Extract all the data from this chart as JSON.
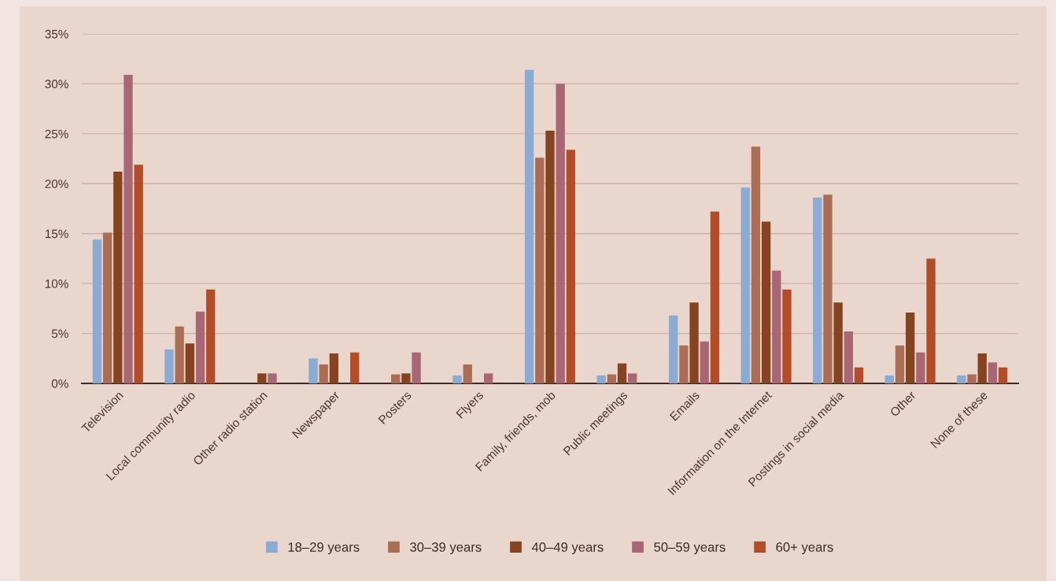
{
  "chart_data": {
    "type": "bar",
    "categories": [
      "Television",
      "Local community radio",
      "Other radio station",
      "Newspaper",
      "Posters",
      "Flyers",
      "Family, friends, mob",
      "Public meetings",
      "Emails",
      "Information on the Internet",
      "Postings in social media",
      "Other",
      "None of these"
    ],
    "series": [
      {
        "name": "18–29 years",
        "color": "#8aabd3",
        "values": [
          14.4,
          3.4,
          0,
          2.5,
          0,
          0.8,
          31.4,
          0.8,
          6.8,
          19.6,
          18.6,
          0.8,
          0.8
        ]
      },
      {
        "name": "30–39 years",
        "color": "#ab6e55",
        "values": [
          15.1,
          5.7,
          0,
          1.9,
          0.9,
          1.9,
          22.6,
          0.9,
          3.8,
          23.7,
          18.9,
          3.8,
          0.9
        ]
      },
      {
        "name": "40–49 years",
        "color": "#85441f",
        "values": [
          21.2,
          4.0,
          1.0,
          3.0,
          1.0,
          0,
          25.3,
          2.0,
          8.1,
          16.2,
          8.1,
          7.1,
          3.0
        ]
      },
      {
        "name": "50–59 years",
        "color": "#a96675",
        "values": [
          30.9,
          7.2,
          1.0,
          0,
          3.1,
          1.0,
          30.0,
          1.0,
          4.2,
          11.3,
          5.2,
          3.1,
          2.1
        ]
      },
      {
        "name": "60+ years",
        "color": "#b44d27",
        "values": [
          21.9,
          9.4,
          0,
          3.1,
          0,
          0,
          23.4,
          0,
          17.2,
          9.4,
          1.6,
          12.5,
          1.6
        ]
      }
    ],
    "ylim": [
      0,
      35
    ],
    "yticks": [
      {
        "value": 0,
        "label": "0%"
      },
      {
        "value": 5,
        "label": "5%"
      },
      {
        "value": 10,
        "label": "10%"
      },
      {
        "value": 15,
        "label": "15%"
      },
      {
        "value": 20,
        "label": "20%"
      },
      {
        "value": 25,
        "label": "25%"
      },
      {
        "value": 30,
        "label": "30%"
      },
      {
        "value": 35,
        "label": "35%"
      }
    ],
    "grid": "y",
    "legend": "bottom"
  }
}
